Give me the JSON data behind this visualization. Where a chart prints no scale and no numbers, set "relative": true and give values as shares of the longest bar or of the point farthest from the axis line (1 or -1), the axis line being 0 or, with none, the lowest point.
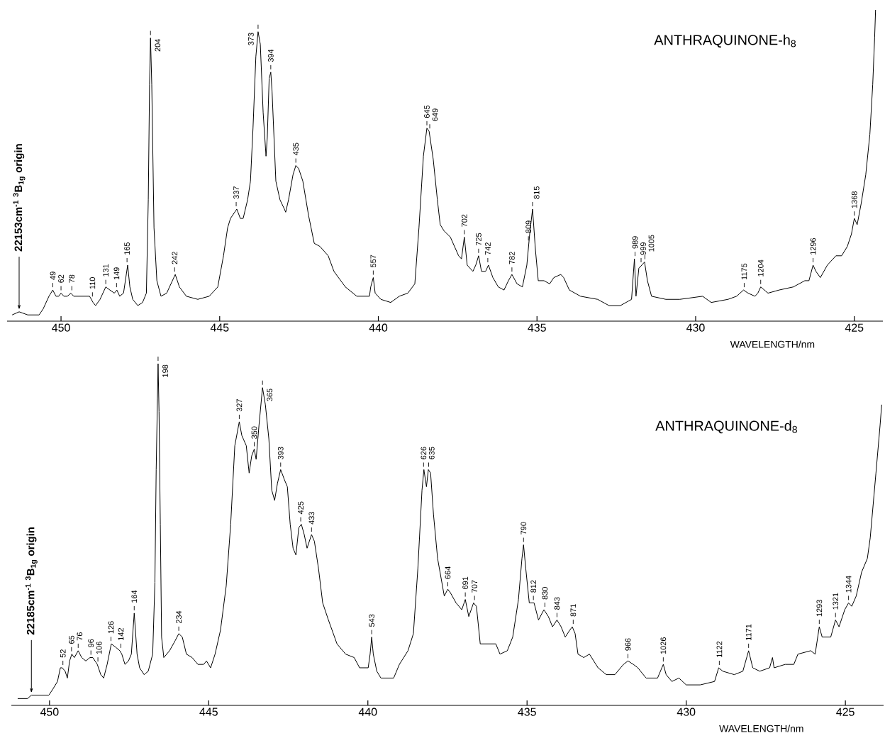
{
  "chart_data": [
    {
      "type": "line",
      "relative": true,
      "title": "ANTHRAQUINONE-h$_{8}$",
      "xlabel": "WAVELENGTH/nm",
      "color": "#000000",
      "xlim": [
        451.7,
        424.1
      ],
      "xticks": [
        450,
        445,
        440,
        435,
        430,
        425
      ],
      "x": [
        451.54,
        451.32,
        451.05,
        450.69,
        450.56,
        450.38,
        450.26,
        450.16,
        450.07,
        450.0,
        449.91,
        449.8,
        449.69,
        449.6,
        449.49,
        449.26,
        449.1,
        448.99,
        448.91,
        448.77,
        448.59,
        448.46,
        448.32,
        448.24,
        448.15,
        448.03,
        447.9,
        447.83,
        447.74,
        447.58,
        447.43,
        447.31,
        447.25,
        447.21,
        447.18,
        447.14,
        447.07,
        446.98,
        446.85,
        446.67,
        446.49,
        446.4,
        446.27,
        446.05,
        445.69,
        445.33,
        445.06,
        444.88,
        444.75,
        444.66,
        444.46,
        444.35,
        444.26,
        444.12,
        444.03,
        443.95,
        443.86,
        443.79,
        443.72,
        443.63,
        443.54,
        443.5,
        443.44,
        443.39,
        443.35,
        443.23,
        443.1,
        442.96,
        442.92,
        442.83,
        442.69,
        442.6,
        442.51,
        442.38,
        442.2,
        442.02,
        441.84,
        441.58,
        441.4,
        441.04,
        440.68,
        440.41,
        440.28,
        440.24,
        440.16,
        440.1,
        439.92,
        439.61,
        439.34,
        439.07,
        438.85,
        438.72,
        438.58,
        438.47,
        438.4,
        438.27,
        438.14,
        438.05,
        437.93,
        437.73,
        437.47,
        437.38,
        437.29,
        437.2,
        437.02,
        436.93,
        436.84,
        436.75,
        436.62,
        436.53,
        436.39,
        436.22,
        436.04,
        435.9,
        435.79,
        435.63,
        435.46,
        435.32,
        435.23,
        435.14,
        435.05,
        434.96,
        434.78,
        434.6,
        434.47,
        434.25,
        434.16,
        433.98,
        433.63,
        433.09,
        432.73,
        432.37,
        432.02,
        431.93,
        431.88,
        431.79,
        431.7,
        431.61,
        431.52,
        431.39,
        430.94,
        430.5,
        429.78,
        429.51,
        428.98,
        428.71,
        428.49,
        428.35,
        428.13,
        428.04,
        427.95,
        427.72,
        427.37,
        426.92,
        426.56,
        426.43,
        426.3,
        426.21,
        426.07,
        425.85,
        425.58,
        425.4,
        425.22,
        425.09,
        425.0,
        424.91,
        424.78,
        424.64,
        424.51,
        424.42,
        424.36,
        424.33
      ],
      "values": [
        0.02,
        0.03,
        0.02,
        0.02,
        0.04,
        0.08,
        0.1,
        0.08,
        0.08,
        0.09,
        0.08,
        0.08,
        0.09,
        0.08,
        0.08,
        0.08,
        0.08,
        0.06,
        0.05,
        0.07,
        0.11,
        0.1,
        0.09,
        0.1,
        0.08,
        0.09,
        0.18,
        0.11,
        0.07,
        0.05,
        0.06,
        0.09,
        0.39,
        0.76,
        0.91,
        0.76,
        0.3,
        0.13,
        0.08,
        0.09,
        0.13,
        0.15,
        0.11,
        0.08,
        0.07,
        0.08,
        0.11,
        0.21,
        0.3,
        0.33,
        0.36,
        0.33,
        0.33,
        0.39,
        0.45,
        0.62,
        0.85,
        0.93,
        0.89,
        0.67,
        0.53,
        0.59,
        0.78,
        0.8,
        0.74,
        0.45,
        0.39,
        0.36,
        0.35,
        0.39,
        0.47,
        0.5,
        0.49,
        0.45,
        0.34,
        0.25,
        0.24,
        0.21,
        0.16,
        0.11,
        0.08,
        0.08,
        0.08,
        0.11,
        0.14,
        0.09,
        0.07,
        0.06,
        0.08,
        0.09,
        0.12,
        0.3,
        0.53,
        0.62,
        0.61,
        0.52,
        0.39,
        0.31,
        0.29,
        0.27,
        0.21,
        0.2,
        0.27,
        0.18,
        0.16,
        0.18,
        0.21,
        0.16,
        0.16,
        0.18,
        0.14,
        0.11,
        0.1,
        0.13,
        0.15,
        0.12,
        0.11,
        0.18,
        0.28,
        0.36,
        0.23,
        0.13,
        0.13,
        0.12,
        0.14,
        0.15,
        0.14,
        0.1,
        0.08,
        0.07,
        0.05,
        0.05,
        0.07,
        0.2,
        0.08,
        0.17,
        0.18,
        0.19,
        0.13,
        0.08,
        0.07,
        0.07,
        0.08,
        0.06,
        0.07,
        0.08,
        0.1,
        0.09,
        0.08,
        0.09,
        0.11,
        0.09,
        0.1,
        0.11,
        0.13,
        0.13,
        0.18,
        0.16,
        0.14,
        0.18,
        0.21,
        0.21,
        0.24,
        0.28,
        0.33,
        0.31,
        0.38,
        0.47,
        0.6,
        0.76,
        0.91,
        1.0
      ],
      "annotations": [
        {
          "text": "22153cm$^{-1}$ $^{3}$B$_{1g}$ origin",
          "x": 451.32,
          "y": 0.03
        },
        {
          "text": "49",
          "x": 450.26,
          "y": 0.1
        },
        {
          "text": "62",
          "x": 450.0,
          "y": 0.09
        },
        {
          "text": "78",
          "x": 449.66,
          "y": 0.09
        },
        {
          "text": "110",
          "x": 449.01,
          "y": 0.07
        },
        {
          "text": "131",
          "x": 448.59,
          "y": 0.11
        },
        {
          "text": "149",
          "x": 448.25,
          "y": 0.1
        },
        {
          "text": "165",
          "x": 447.92,
          "y": 0.18
        },
        {
          "text": "204",
          "x": 447.18,
          "y": 0.91
        },
        {
          "text": "242",
          "x": 446.42,
          "y": 0.15
        },
        {
          "text": "337",
          "x": 444.48,
          "y": 0.36
        },
        {
          "text": "373",
          "x": 443.79,
          "y": 0.93
        },
        {
          "text": "394",
          "x": 443.39,
          "y": 0.8
        },
        {
          "text": "435",
          "x": 442.6,
          "y": 0.5
        },
        {
          "text": "557",
          "x": 440.16,
          "y": 0.14
        },
        {
          "text": "645",
          "x": 438.47,
          "y": 0.62
        },
        {
          "text": "649",
          "x": 438.38,
          "y": 0.61
        },
        {
          "text": "702",
          "x": 437.29,
          "y": 0.27
        },
        {
          "text": "725",
          "x": 436.84,
          "y": 0.21
        },
        {
          "text": "742",
          "x": 436.55,
          "y": 0.18
        },
        {
          "text": "782",
          "x": 435.79,
          "y": 0.15
        },
        {
          "text": "809",
          "x": 435.27,
          "y": 0.25
        },
        {
          "text": "815",
          "x": 435.14,
          "y": 0.36
        },
        {
          "text": "989",
          "x": 431.91,
          "y": 0.2
        },
        {
          "text": "999",
          "x": 431.72,
          "y": 0.18
        },
        {
          "text": "1005",
          "x": 431.6,
          "y": 0.19
        },
        {
          "text": "1175",
          "x": 428.47,
          "y": 0.1
        },
        {
          "text": "1204",
          "x": 427.95,
          "y": 0.11
        },
        {
          "text": "1296",
          "x": 426.3,
          "y": 0.18
        },
        {
          "text": "1368",
          "x": 425.0,
          "y": 0.33
        }
      ]
    },
    {
      "type": "line",
      "relative": true,
      "title": "ANTHRAQUINONE-d$_{8}$",
      "xlabel": "WAVELENGTH/nm",
      "color": "#000000",
      "xlim": [
        451.2,
        423.8
      ],
      "xticks": [
        450,
        445,
        440,
        435,
        430,
        425
      ],
      "x": [
        451.0,
        450.69,
        450.57,
        450.46,
        450.24,
        450.02,
        449.88,
        449.75,
        449.66,
        449.6,
        449.51,
        449.44,
        449.37,
        449.3,
        449.22,
        449.1,
        448.99,
        448.86,
        448.73,
        448.64,
        448.5,
        448.39,
        448.3,
        448.19,
        448.06,
        447.92,
        447.79,
        447.73,
        447.63,
        447.52,
        447.43,
        447.34,
        447.25,
        447.17,
        447.03,
        446.9,
        446.76,
        446.69,
        446.65,
        446.61,
        446.59,
        446.56,
        446.52,
        446.48,
        446.41,
        446.23,
        446.05,
        445.94,
        445.83,
        445.7,
        445.52,
        445.34,
        445.16,
        445.07,
        444.94,
        444.8,
        444.63,
        444.45,
        444.31,
        444.18,
        444.04,
        443.96,
        443.82,
        443.73,
        443.65,
        443.57,
        443.51,
        443.42,
        443.31,
        443.22,
        443.11,
        443.02,
        442.93,
        442.84,
        442.74,
        442.62,
        442.53,
        442.44,
        442.35,
        442.26,
        442.17,
        442.09,
        442.0,
        441.91,
        441.77,
        441.68,
        441.55,
        441.42,
        441.24,
        440.97,
        440.7,
        440.43,
        440.26,
        439.99,
        439.93,
        439.88,
        439.83,
        439.72,
        439.59,
        439.19,
        439.01,
        438.74,
        438.57,
        438.43,
        438.3,
        438.24,
        438.16,
        438.1,
        438.03,
        437.94,
        437.81,
        437.6,
        437.49,
        437.41,
        437.23,
        437.05,
        436.94,
        436.83,
        436.68,
        436.59,
        436.47,
        436.34,
        435.98,
        435.85,
        435.62,
        435.45,
        435.27,
        435.16,
        435.11,
        435.04,
        434.93,
        434.78,
        434.64,
        434.47,
        434.33,
        434.2,
        434.06,
        433.93,
        433.8,
        433.66,
        433.58,
        433.49,
        433.4,
        433.22,
        433.04,
        432.77,
        432.51,
        432.24,
        431.97,
        431.83,
        431.66,
        431.52,
        431.26,
        430.9,
        430.72,
        430.63,
        430.45,
        430.23,
        430.0,
        429.56,
        429.11,
        428.98,
        428.85,
        428.49,
        428.22,
        428.04,
        427.91,
        427.69,
        427.38,
        427.29,
        427.24,
        426.89,
        426.62,
        426.49,
        426.09,
        425.95,
        425.82,
        425.73,
        425.46,
        425.31,
        425.2,
        425.02,
        424.9,
        424.8,
        424.66,
        424.49,
        424.31,
        424.22,
        424.04,
        423.91,
        423.86
      ],
      "values": [
        0.02,
        0.02,
        0.03,
        0.03,
        0.03,
        0.03,
        0.05,
        0.07,
        0.11,
        0.11,
        0.1,
        0.08,
        0.13,
        0.15,
        0.14,
        0.16,
        0.14,
        0.13,
        0.14,
        0.14,
        0.12,
        0.09,
        0.08,
        0.12,
        0.18,
        0.17,
        0.16,
        0.15,
        0.12,
        0.13,
        0.15,
        0.27,
        0.15,
        0.11,
        0.09,
        0.1,
        0.15,
        0.36,
        0.69,
        0.9,
        1.0,
        0.86,
        0.53,
        0.2,
        0.14,
        0.16,
        0.19,
        0.21,
        0.2,
        0.15,
        0.14,
        0.12,
        0.12,
        0.13,
        0.11,
        0.15,
        0.22,
        0.35,
        0.53,
        0.76,
        0.83,
        0.79,
        0.76,
        0.68,
        0.73,
        0.75,
        0.72,
        0.82,
        0.93,
        0.88,
        0.78,
        0.63,
        0.6,
        0.65,
        0.69,
        0.66,
        0.64,
        0.53,
        0.46,
        0.44,
        0.52,
        0.53,
        0.5,
        0.46,
        0.5,
        0.48,
        0.4,
        0.3,
        0.25,
        0.18,
        0.15,
        0.14,
        0.11,
        0.11,
        0.15,
        0.2,
        0.15,
        0.1,
        0.08,
        0.08,
        0.12,
        0.16,
        0.21,
        0.4,
        0.63,
        0.69,
        0.64,
        0.69,
        0.68,
        0.56,
        0.43,
        0.32,
        0.34,
        0.33,
        0.3,
        0.28,
        0.31,
        0.26,
        0.3,
        0.29,
        0.18,
        0.18,
        0.18,
        0.15,
        0.16,
        0.2,
        0.31,
        0.43,
        0.47,
        0.4,
        0.3,
        0.3,
        0.25,
        0.28,
        0.26,
        0.23,
        0.25,
        0.23,
        0.2,
        0.22,
        0.23,
        0.21,
        0.15,
        0.14,
        0.15,
        0.11,
        0.09,
        0.09,
        0.12,
        0.13,
        0.12,
        0.11,
        0.08,
        0.08,
        0.12,
        0.09,
        0.07,
        0.08,
        0.06,
        0.06,
        0.07,
        0.11,
        0.1,
        0.09,
        0.1,
        0.16,
        0.11,
        0.1,
        0.11,
        0.14,
        0.11,
        0.12,
        0.12,
        0.15,
        0.16,
        0.15,
        0.23,
        0.2,
        0.2,
        0.25,
        0.23,
        0.28,
        0.3,
        0.29,
        0.32,
        0.39,
        0.43,
        0.49,
        0.68,
        0.82,
        0.88
      ],
      "annotations": [
        {
          "text": "22185cm$^{-1}$ $^{3}$B$_{1g}$ origin",
          "x": 450.57,
          "y": 0.03
        },
        {
          "text": "52",
          "x": 449.58,
          "y": 0.11
        },
        {
          "text": "65",
          "x": 449.31,
          "y": 0.15
        },
        {
          "text": "76",
          "x": 449.1,
          "y": 0.16
        },
        {
          "text": "96",
          "x": 448.7,
          "y": 0.14
        },
        {
          "text": "106",
          "x": 448.48,
          "y": 0.12
        },
        {
          "text": "126",
          "x": 448.07,
          "y": 0.18
        },
        {
          "text": "142",
          "x": 447.76,
          "y": 0.16
        },
        {
          "text": "164",
          "x": 447.34,
          "y": 0.27
        },
        {
          "text": "198",
          "x": 446.59,
          "y": 1.0
        },
        {
          "text": "234",
          "x": 445.94,
          "y": 0.21
        },
        {
          "text": "327",
          "x": 444.04,
          "y": 0.83
        },
        {
          "text": "350",
          "x": 443.57,
          "y": 0.75
        },
        {
          "text": "365",
          "x": 443.31,
          "y": 0.93
        },
        {
          "text": "393",
          "x": 442.74,
          "y": 0.69
        },
        {
          "text": "425",
          "x": 442.11,
          "y": 0.53
        },
        {
          "text": "433",
          "x": 441.77,
          "y": 0.5
        },
        {
          "text": "543",
          "x": 439.88,
          "y": 0.2
        },
        {
          "text": "626",
          "x": 438.25,
          "y": 0.69
        },
        {
          "text": "635",
          "x": 438.09,
          "y": 0.69
        },
        {
          "text": "664",
          "x": 437.49,
          "y": 0.34
        },
        {
          "text": "691",
          "x": 436.94,
          "y": 0.31
        },
        {
          "text": "707",
          "x": 436.65,
          "y": 0.3
        },
        {
          "text": "790",
          "x": 435.11,
          "y": 0.47
        },
        {
          "text": "812",
          "x": 434.8,
          "y": 0.3
        },
        {
          "text": "830",
          "x": 434.44,
          "y": 0.28
        },
        {
          "text": "843",
          "x": 434.06,
          "y": 0.25
        },
        {
          "text": "871",
          "x": 433.55,
          "y": 0.23
        },
        {
          "text": "966",
          "x": 431.83,
          "y": 0.13
        },
        {
          "text": "1026",
          "x": 430.72,
          "y": 0.12
        },
        {
          "text": "1122",
          "x": 428.96,
          "y": 0.11
        },
        {
          "text": "1171",
          "x": 428.04,
          "y": 0.16
        },
        {
          "text": "1293",
          "x": 425.82,
          "y": 0.23
        },
        {
          "text": "1321",
          "x": 425.31,
          "y": 0.25
        },
        {
          "text": "1344",
          "x": 424.9,
          "y": 0.3
        }
      ]
    }
  ]
}
